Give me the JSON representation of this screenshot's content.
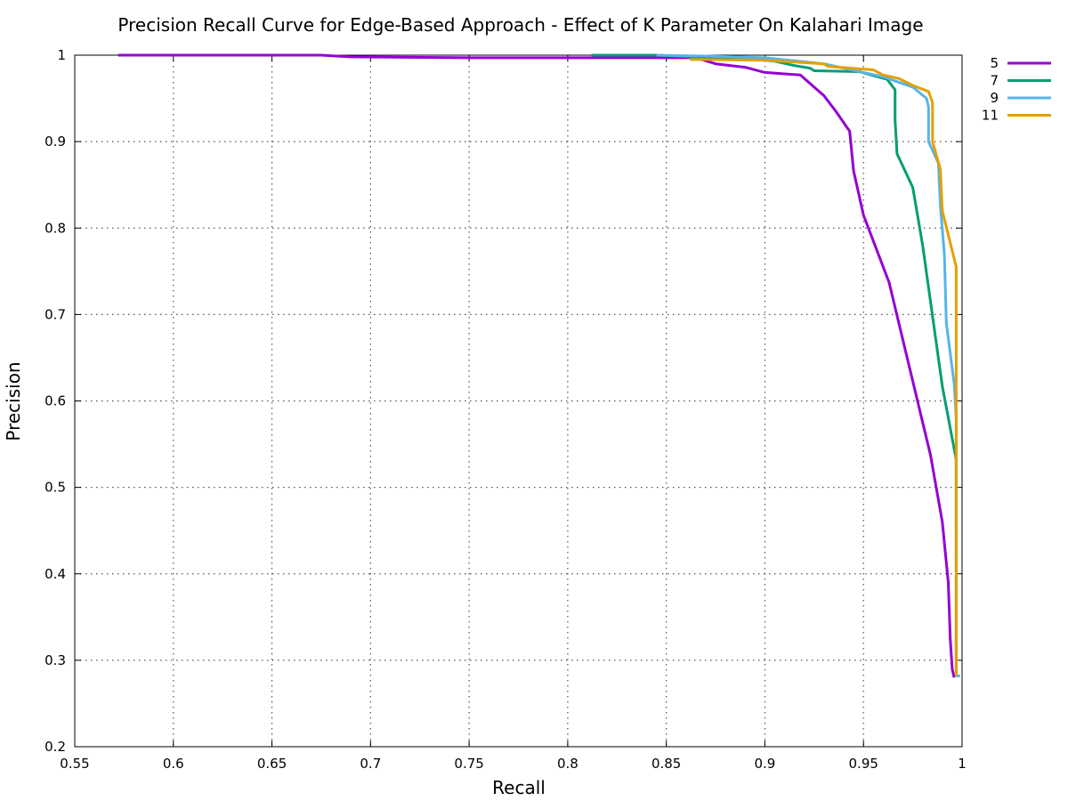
{
  "chart_data": {
    "type": "line",
    "title": "Precision Recall Curve for Edge-Based Approach - Effect of K Parameter On Kalahari Image",
    "xlabel": "Recall",
    "ylabel": "Precision",
    "xlim": [
      0.55,
      1
    ],
    "ylim": [
      0.2,
      1
    ],
    "xticks": [
      0.55,
      0.6,
      0.65,
      0.7,
      0.75,
      0.8,
      0.85,
      0.9,
      0.95,
      1
    ],
    "yticks": [
      0.2,
      0.3,
      0.4,
      0.5,
      0.6,
      0.7,
      0.8,
      0.9,
      1
    ],
    "xtick_labels": [
      "0.55",
      "0.6",
      "0.65",
      "0.7",
      "0.75",
      "0.8",
      "0.85",
      "0.9",
      "0.95",
      "1"
    ],
    "ytick_labels": [
      "0.2",
      "0.3",
      "0.4",
      "0.5",
      "0.6",
      "0.7",
      "0.8",
      "0.9",
      "1"
    ],
    "grid": true,
    "legend": "outside-top-right",
    "series": [
      {
        "name": "5",
        "color": "#9400d3",
        "points": [
          [
            0.572,
            1.0
          ],
          [
            0.675,
            1.0
          ],
          [
            0.69,
            0.998
          ],
          [
            0.75,
            0.997
          ],
          [
            0.8,
            0.997
          ],
          [
            0.865,
            0.997
          ],
          [
            0.875,
            0.99
          ],
          [
            0.89,
            0.986
          ],
          [
            0.9,
            0.98
          ],
          [
            0.918,
            0.977
          ],
          [
            0.93,
            0.953
          ],
          [
            0.936,
            0.935
          ],
          [
            0.943,
            0.912
          ],
          [
            0.945,
            0.866
          ],
          [
            0.95,
            0.815
          ],
          [
            0.963,
            0.737
          ],
          [
            0.984,
            0.537
          ],
          [
            0.99,
            0.46
          ],
          [
            0.993,
            0.39
          ],
          [
            0.994,
            0.325
          ],
          [
            0.995,
            0.29
          ],
          [
            0.996,
            0.28
          ]
        ]
      },
      {
        "name": "7",
        "color": "#009e73",
        "points": [
          [
            0.812,
            1.0
          ],
          [
            0.845,
            1.0
          ],
          [
            0.87,
            0.997
          ],
          [
            0.89,
            0.996
          ],
          [
            0.905,
            0.993
          ],
          [
            0.915,
            0.988
          ],
          [
            0.923,
            0.985
          ],
          [
            0.925,
            0.982
          ],
          [
            0.948,
            0.981
          ],
          [
            0.962,
            0.972
          ],
          [
            0.966,
            0.96
          ],
          [
            0.966,
            0.925
          ],
          [
            0.967,
            0.886
          ],
          [
            0.975,
            0.847
          ],
          [
            0.98,
            0.78
          ],
          [
            0.99,
            0.617
          ],
          [
            0.997,
            0.532
          ],
          [
            0.997,
            0.282
          ]
        ]
      },
      {
        "name": "9",
        "color": "#56b4e9",
        "points": [
          [
            0.845,
            1.0
          ],
          [
            0.87,
            0.999
          ],
          [
            0.9,
            0.997
          ],
          [
            0.93,
            0.99
          ],
          [
            0.96,
            0.975
          ],
          [
            0.975,
            0.963
          ],
          [
            0.982,
            0.95
          ],
          [
            0.983,
            0.94
          ],
          [
            0.983,
            0.9
          ],
          [
            0.988,
            0.875
          ],
          [
            0.989,
            0.826
          ],
          [
            0.991,
            0.77
          ],
          [
            0.992,
            0.69
          ],
          [
            0.996,
            0.62
          ],
          [
            0.997,
            0.58
          ],
          [
            0.997,
            0.282
          ],
          [
            0.999,
            0.282
          ]
        ]
      },
      {
        "name": "11",
        "color": "#e69f00",
        "points": [
          [
            0.862,
            0.995
          ],
          [
            0.87,
            0.995
          ],
          [
            0.9,
            0.994
          ],
          [
            0.93,
            0.99
          ],
          [
            0.932,
            0.987
          ],
          [
            0.955,
            0.983
          ],
          [
            0.96,
            0.977
          ],
          [
            0.968,
            0.973
          ],
          [
            0.975,
            0.965
          ],
          [
            0.983,
            0.958
          ],
          [
            0.985,
            0.945
          ],
          [
            0.985,
            0.9
          ],
          [
            0.989,
            0.868
          ],
          [
            0.99,
            0.82
          ],
          [
            0.997,
            0.755
          ],
          [
            0.997,
            0.282
          ]
        ]
      }
    ]
  }
}
